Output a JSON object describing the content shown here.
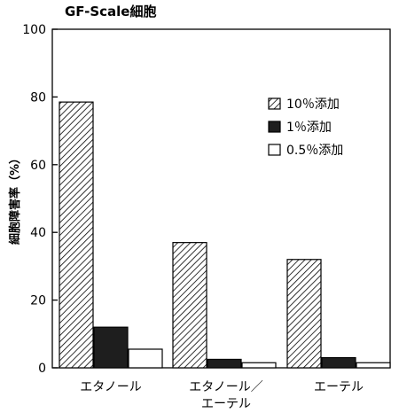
{
  "chart_data": {
    "type": "bar",
    "title": "GF-Scale細胞",
    "xlabel": "",
    "ylabel": "細胞障害率（%）",
    "ylim": [
      0,
      100
    ],
    "yticks": [
      0,
      20,
      40,
      60,
      80,
      100
    ],
    "categories": [
      [
        "エタノール"
      ],
      [
        "エタノール／",
        "エーテル"
      ],
      [
        "エーテル"
      ]
    ],
    "series": [
      {
        "name": "10％添加",
        "fill": "hatched",
        "values": [
          78.5,
          37,
          32
        ]
      },
      {
        "name": "1％添加",
        "fill": "dark",
        "values": [
          12,
          2.5,
          3
        ]
      },
      {
        "name": "0.5％添加",
        "fill": "white",
        "values": [
          5.5,
          1.5,
          1.5
        ]
      }
    ],
    "legend_position": "top-right",
    "grid": false
  },
  "colors": {
    "axis": "#000000",
    "dark_fill": "#1e1e1e",
    "white_fill": "#ffffff",
    "hatch": "#000000"
  }
}
